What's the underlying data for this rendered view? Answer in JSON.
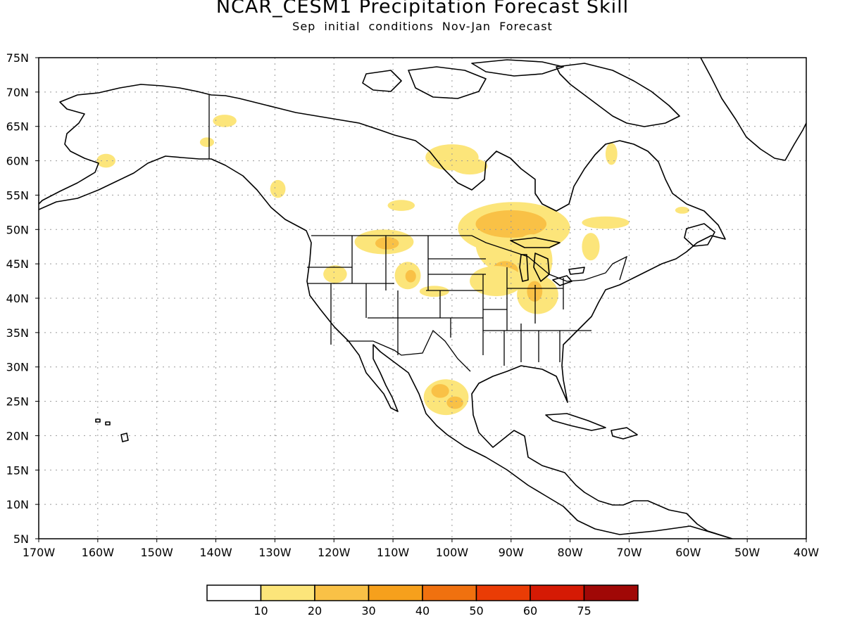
{
  "title": "NCAR_CESM1 Precipitation Forecast Skill",
  "subtitle": "Sep initial conditions  Nov-Jan Forecast",
  "map": {
    "lon_range": [
      -170,
      -40
    ],
    "lat_range": [
      5,
      75
    ],
    "lon_ticks": [
      {
        "v": -170,
        "label": "170W"
      },
      {
        "v": -160,
        "label": "160W"
      },
      {
        "v": -150,
        "label": "150W"
      },
      {
        "v": -140,
        "label": "140W"
      },
      {
        "v": -130,
        "label": "130W"
      },
      {
        "v": -120,
        "label": "120W"
      },
      {
        "v": -110,
        "label": "110W"
      },
      {
        "v": -100,
        "label": "100W"
      },
      {
        "v": -90,
        "label": "90W"
      },
      {
        "v": -80,
        "label": "80W"
      },
      {
        "v": -70,
        "label": "70W"
      },
      {
        "v": -60,
        "label": "60W"
      },
      {
        "v": -50,
        "label": "50W"
      },
      {
        "v": -40,
        "label": "40W"
      }
    ],
    "lat_ticks": [
      {
        "v": 75,
        "label": "75N"
      },
      {
        "v": 70,
        "label": "70N"
      },
      {
        "v": 65,
        "label": "65N"
      },
      {
        "v": 60,
        "label": "60N"
      },
      {
        "v": 55,
        "label": "55N"
      },
      {
        "v": 50,
        "label": "50N"
      },
      {
        "v": 45,
        "label": "45N"
      },
      {
        "v": 40,
        "label": "40N"
      },
      {
        "v": 35,
        "label": "35N"
      },
      {
        "v": 30,
        "label": "30N"
      },
      {
        "v": 25,
        "label": "25N"
      },
      {
        "v": 20,
        "label": "20N"
      },
      {
        "v": 15,
        "label": "15N"
      },
      {
        "v": 10,
        "label": "10N"
      },
      {
        "v": 5,
        "label": "5N"
      }
    ],
    "grid": true
  },
  "legend": {
    "boxes": [
      "#ffffff",
      "#fce57a",
      "#f9c146",
      "#f6a01c",
      "#f0710f",
      "#ea3c05",
      "#d51a04",
      "#a00806"
    ],
    "labels": [
      "10",
      "20",
      "30",
      "40",
      "50",
      "60",
      "75"
    ]
  },
  "skill_patches": [
    {
      "lon": -158.6,
      "lat": 60.0,
      "rlon": 1.6,
      "rlat": 1.0,
      "level": 1
    },
    {
      "lon": -138.5,
      "lat": 65.8,
      "rlon": 2.0,
      "rlat": 0.9,
      "level": 1
    },
    {
      "lon": -141.5,
      "lat": 62.7,
      "rlon": 1.2,
      "rlat": 0.7,
      "level": 1
    },
    {
      "lon": -129.5,
      "lat": 55.9,
      "rlon": 1.3,
      "rlat": 1.3,
      "level": 1
    },
    {
      "lon": -100.0,
      "lat": 60.5,
      "rlon": 4.5,
      "rlat": 1.9,
      "level": 1
    },
    {
      "lon": -97.0,
      "lat": 59.2,
      "rlon": 3.0,
      "rlat": 1.2,
      "level": 1
    },
    {
      "lon": -108.6,
      "lat": 53.5,
      "rlon": 2.3,
      "rlat": 0.8,
      "level": 1
    },
    {
      "lon": -89.5,
      "lat": 50.2,
      "rlon": 9.5,
      "rlat": 3.8,
      "level": 1
    },
    {
      "lon": -91.5,
      "lat": 48.0,
      "rlon": 4.5,
      "rlat": 4.0,
      "level": 1
    },
    {
      "lon": -90.0,
      "lat": 50.8,
      "rlon": 6.0,
      "rlat": 2.0,
      "level": 2
    },
    {
      "lon": -86.5,
      "lat": 45.5,
      "rlon": 3.5,
      "rlat": 3.8,
      "level": 1
    },
    {
      "lon": -91.0,
      "lat": 44.0,
      "rlon": 2.2,
      "rlat": 1.4,
      "level": 2
    },
    {
      "lon": -92.5,
      "lat": 42.5,
      "rlon": 4.5,
      "rlat": 2.2,
      "level": 1
    },
    {
      "lon": -85.5,
      "lat": 40.5,
      "rlon": 3.5,
      "rlat": 2.8,
      "level": 1
    },
    {
      "lon": -86.0,
      "lat": 41.0,
      "rlon": 1.3,
      "rlat": 1.5,
      "level": 2
    },
    {
      "lon": -74.0,
      "lat": 51.0,
      "rlon": 4.0,
      "rlat": 0.9,
      "level": 1
    },
    {
      "lon": -76.5,
      "lat": 47.5,
      "rlon": 1.5,
      "rlat": 2.0,
      "level": 1
    },
    {
      "lon": -73.0,
      "lat": 61.0,
      "rlon": 1.0,
      "rlat": 1.6,
      "level": 1
    },
    {
      "lon": -61.0,
      "lat": 52.8,
      "rlon": 1.2,
      "rlat": 0.5,
      "level": 1
    },
    {
      "lon": -111.5,
      "lat": 48.2,
      "rlon": 5.0,
      "rlat": 1.8,
      "level": 1
    },
    {
      "lon": -111.0,
      "lat": 48.0,
      "rlon": 2.0,
      "rlat": 0.9,
      "level": 2
    },
    {
      "lon": -107.5,
      "lat": 43.3,
      "rlon": 2.2,
      "rlat": 2.0,
      "level": 1
    },
    {
      "lon": -107.0,
      "lat": 43.2,
      "rlon": 0.9,
      "rlat": 0.9,
      "level": 2
    },
    {
      "lon": -119.8,
      "lat": 43.5,
      "rlon": 2.0,
      "rlat": 1.3,
      "level": 1
    },
    {
      "lon": -103.0,
      "lat": 41.0,
      "rlon": 2.5,
      "rlat": 0.8,
      "level": 1
    },
    {
      "lon": -101.0,
      "lat": 25.6,
      "rlon": 3.8,
      "rlat": 2.6,
      "level": 1
    },
    {
      "lon": -102.0,
      "lat": 26.5,
      "rlon": 1.5,
      "rlat": 1.0,
      "level": 2
    },
    {
      "lon": -99.5,
      "lat": 24.8,
      "rlon": 1.4,
      "rlat": 0.9,
      "level": 2
    }
  ]
}
